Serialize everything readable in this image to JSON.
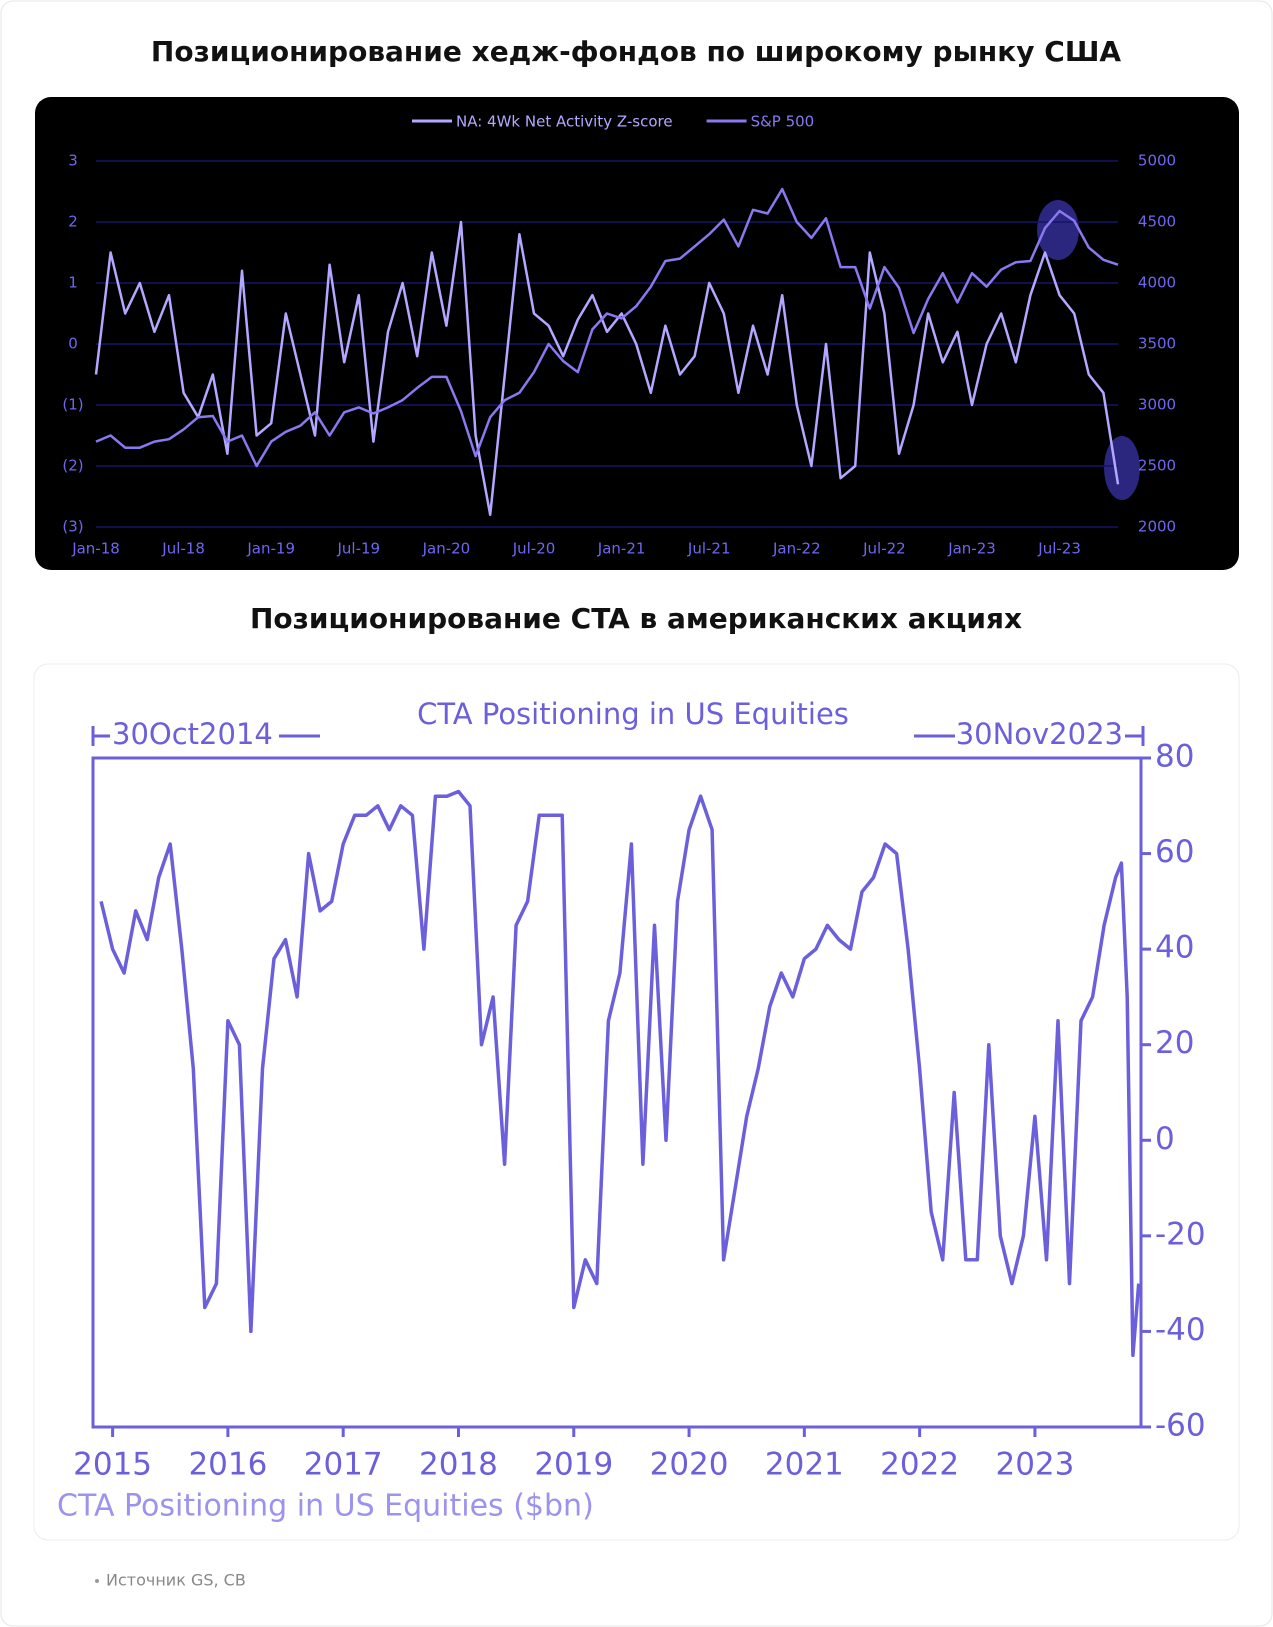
{
  "headings": [
    "Позиционирование хедж-фондов по широкому рынку США",
    "Позиционирование CTA в американских акциях"
  ],
  "source": "Источник GS, CB",
  "chart_data": [
    {
      "type": "line",
      "x": [
        "Jan-18",
        "Feb-18",
        "Mar-18",
        "Apr-18",
        "May-18",
        "Jun-18",
        "Jul-18",
        "Aug-18",
        "Sep-18",
        "Oct-18",
        "Nov-18",
        "Dec-18",
        "Jan-19",
        "Feb-19",
        "Mar-19",
        "Apr-19",
        "May-19",
        "Jun-19",
        "Jul-19",
        "Aug-19",
        "Sep-19",
        "Oct-19",
        "Nov-19",
        "Dec-19",
        "Jan-20",
        "Feb-20",
        "Mar-20",
        "Apr-20",
        "May-20",
        "Jun-20",
        "Jul-20",
        "Aug-20",
        "Sep-20",
        "Oct-20",
        "Nov-20",
        "Dec-20",
        "Jan-21",
        "Feb-21",
        "Mar-21",
        "Apr-21",
        "May-21",
        "Jun-21",
        "Jul-21",
        "Aug-21",
        "Sep-21",
        "Oct-21",
        "Nov-21",
        "Dec-21",
        "Jan-22",
        "Feb-22",
        "Mar-22",
        "Apr-22",
        "May-22",
        "Jun-22",
        "Jul-22",
        "Aug-22",
        "Sep-22",
        "Oct-22",
        "Nov-22",
        "Dec-22",
        "Jan-23",
        "Feb-23",
        "Mar-23",
        "Apr-23",
        "May-23",
        "Jun-23",
        "Jul-23",
        "Aug-23",
        "Sep-23",
        "Oct-23",
        "Nov-23"
      ],
      "xticks": [
        "Jan-18",
        "Jul-18",
        "Jan-19",
        "Jul-19",
        "Jan-20",
        "Jul-20",
        "Jan-21",
        "Jul-21",
        "Jan-22",
        "Jul-22",
        "Jan-23",
        "Jul-23"
      ],
      "series": [
        {
          "name": "NA: 4Wk Net Activity Z-score",
          "color": "#b3a8ff",
          "values": [
            -0.5,
            1.5,
            0.5,
            1,
            0.2,
            0.8,
            -0.8,
            -1.2,
            -0.5,
            -1.8,
            1.2,
            -1.5,
            -1.3,
            0.5,
            -0.5,
            -1.5,
            1.3,
            -0.3,
            0.8,
            -1.6,
            0.2,
            1,
            -0.2,
            1.5,
            0.3,
            2,
            -1.5,
            -2.8,
            -0.5,
            1.8,
            0.5,
            0.3,
            -0.2,
            0.4,
            0.8,
            0.2,
            0.5,
            0,
            -0.8,
            0.3,
            -0.5,
            -0.2,
            1,
            0.5,
            -0.8,
            0.3,
            -0.5,
            0.8,
            -1,
            -2,
            0,
            -2.2,
            -2,
            1.5,
            0.5,
            -1.8,
            -1,
            0.5,
            -0.3,
            0.2,
            -1,
            0,
            0.5,
            -0.3,
            0.8,
            1.5,
            0.8,
            0.5,
            -0.5,
            -0.8,
            -2.3
          ]
        },
        {
          "name": "S&P 500",
          "color": "#8a78f0",
          "axis": "y2",
          "values": [
            2700,
            2750,
            2650,
            2650,
            2700,
            2720,
            2800,
            2900,
            2910,
            2700,
            2750,
            2500,
            2700,
            2780,
            2830,
            2940,
            2750,
            2940,
            2980,
            2930,
            2980,
            3040,
            3140,
            3230,
            3230,
            2950,
            2580,
            2900,
            3040,
            3100,
            3270,
            3500,
            3360,
            3270,
            3620,
            3750,
            3710,
            3810,
            3970,
            4180,
            4200,
            4300,
            4400,
            4520,
            4300,
            4600,
            4570,
            4770,
            4500,
            4370,
            4530,
            4130,
            4130,
            3790,
            4130,
            3960,
            3590,
            3870,
            4080,
            3840,
            4080,
            3970,
            4110,
            4170,
            4180,
            4450,
            4590,
            4510,
            4290,
            4190,
            4150
          ]
        }
      ],
      "ylim": [
        -3,
        3
      ],
      "yticks": [
        {
          "value": -3,
          "label": "(3)"
        },
        {
          "value": -2,
          "label": "(2)"
        },
        {
          "value": -1,
          "label": "(1)"
        },
        0,
        1,
        2,
        3
      ],
      "y2lim": [
        2000,
        5000
      ],
      "y2ticks": [
        2000,
        2500,
        3000,
        3500,
        4000,
        4500,
        5000
      ],
      "grid": true,
      "legend": "top"
    },
    {
      "type": "line",
      "title": "CTA Positioning in US Equities",
      "annotations": [
        "30Oct2014",
        "30Nov2023"
      ],
      "footnote": "CTA Positioning in US Equities ($bn)",
      "xlim": [
        2014.83,
        2023.92
      ],
      "xticks": [
        2015,
        2016,
        2017,
        2018,
        2019,
        2020,
        2021,
        2022,
        2023
      ],
      "ylim": [
        -60,
        80
      ],
      "yticks": [
        -60,
        -40,
        -20,
        0,
        20,
        40,
        60,
        80
      ],
      "series": [
        {
          "name": "CTA Positioning in US Equities",
          "color": "#6b5fdc",
          "x": [
            2014.9,
            2015,
            2015.1,
            2015.2,
            2015.3,
            2015.4,
            2015.5,
            2015.6,
            2015.7,
            2015.8,
            2015.9,
            2016,
            2016.1,
            2016.2,
            2016.3,
            2016.4,
            2016.5,
            2016.6,
            2016.7,
            2016.8,
            2016.9,
            2017,
            2017.1,
            2017.2,
            2017.3,
            2017.4,
            2017.5,
            2017.6,
            2017.7,
            2017.8,
            2017.9,
            2018,
            2018.1,
            2018.2,
            2018.3,
            2018.4,
            2018.5,
            2018.6,
            2018.7,
            2018.8,
            2018.9,
            2019,
            2019.1,
            2019.2,
            2019.3,
            2019.4,
            2019.5,
            2019.6,
            2019.7,
            2019.8,
            2019.9,
            2020,
            2020.1,
            2020.2,
            2020.3,
            2020.4,
            2020.5,
            2020.6,
            2020.7,
            2020.8,
            2020.9,
            2021,
            2021.1,
            2021.2,
            2021.3,
            2021.4,
            2021.5,
            2021.6,
            2021.7,
            2021.8,
            2021.9,
            2022,
            2022.1,
            2022.2,
            2022.3,
            2022.4,
            2022.5,
            2022.6,
            2022.7,
            2022.8,
            2022.9,
            2023,
            2023.1,
            2023.2,
            2023.3,
            2023.4,
            2023.5,
            2023.6,
            2023.7,
            2023.75,
            2023.8,
            2023.85,
            2023.9
          ],
          "values": [
            50,
            40,
            35,
            48,
            42,
            55,
            62,
            40,
            15,
            -35,
            -30,
            25,
            20,
            -40,
            15,
            38,
            42,
            30,
            60,
            48,
            50,
            62,
            68,
            68,
            70,
            65,
            70,
            68,
            40,
            72,
            72,
            73,
            70,
            20,
            30,
            -5,
            45,
            50,
            68,
            68,
            68,
            -35,
            -25,
            -30,
            25,
            35,
            62,
            -5,
            45,
            0,
            50,
            65,
            72,
            65,
            -25,
            -10,
            5,
            15,
            28,
            35,
            30,
            38,
            40,
            45,
            42,
            40,
            52,
            55,
            62,
            60,
            40,
            15,
            -15,
            -25,
            10,
            -25,
            -25,
            20,
            -20,
            -30,
            -20,
            5,
            -25,
            25,
            -30,
            25,
            30,
            45,
            55,
            58,
            30,
            -45,
            -30
          ]
        }
      ]
    }
  ]
}
